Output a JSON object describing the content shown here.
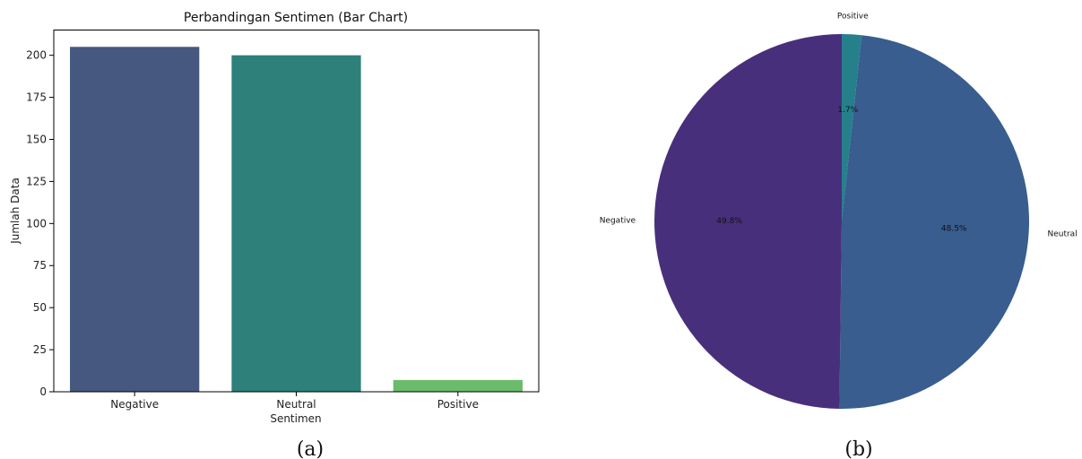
{
  "chart_data": [
    {
      "type": "bar",
      "title": "Perbandingan Sentimen (Bar Chart)",
      "xlabel": "Sentimen",
      "ylabel": "Jumlah Data",
      "categories": [
        "Negative",
        "Neutral",
        "Positive"
      ],
      "values": [
        205,
        200,
        7
      ],
      "colors": [
        "#46587f",
        "#2e807a",
        "#6abc6a"
      ],
      "ylim": [
        0,
        215
      ],
      "yticks": [
        0,
        25,
        50,
        75,
        100,
        125,
        150,
        175,
        200
      ],
      "grid": false
    },
    {
      "type": "pie",
      "title": "",
      "slices": [
        {
          "label": "Positive",
          "pct_text": "1.7%",
          "value": 1.7,
          "color": "#25808c"
        },
        {
          "label": "Neutral",
          "pct_text": "48.5%",
          "value": 48.5,
          "color": "#385d8e"
        },
        {
          "label": "Negative",
          "pct_text": "49.8%",
          "value": 49.8,
          "color": "#482f7c"
        }
      ]
    }
  ],
  "captions": {
    "left": "(a)",
    "right": "(b)"
  }
}
